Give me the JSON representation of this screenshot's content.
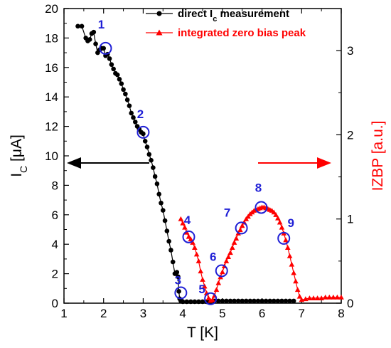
{
  "chart_data": {
    "type": "line",
    "x_axis": {
      "label": "T [K]",
      "range": [
        1,
        8
      ],
      "ticks": [
        "1",
        "2",
        "3",
        "4",
        "5",
        "6",
        "7",
        "8"
      ]
    },
    "y_axis_left": {
      "label_main": "I",
      "label_sub": "C",
      "label_unit": " [μA]",
      "range": [
        0,
        20
      ],
      "ticks": [
        "0",
        "2",
        "4",
        "6",
        "8",
        "10",
        "12",
        "14",
        "16",
        "18",
        "20"
      ]
    },
    "y_axis_right": {
      "label": "IZBP [a.u.]",
      "range": [
        0,
        3.5
      ],
      "ticks": [
        "0",
        "1",
        "2",
        "3"
      ],
      "color": "#ff0000"
    },
    "series": [
      {
        "name": "direct I_c measurement",
        "legend_main": "direct I",
        "legend_sub": "c",
        "legend_rest": " measurement",
        "color": "#000000",
        "marker": "circle",
        "axis": "left",
        "x": [
          1.35,
          1.45,
          1.55,
          1.6,
          1.65,
          1.7,
          1.75,
          1.8,
          1.85,
          1.9,
          1.95,
          2.0,
          2.05,
          2.1,
          2.15,
          2.2,
          2.25,
          2.3,
          2.35,
          2.4,
          2.45,
          2.5,
          2.55,
          2.6,
          2.65,
          2.7,
          2.75,
          2.8,
          2.85,
          2.9,
          2.95,
          3.0,
          3.05,
          3.1,
          3.15,
          3.2,
          3.25,
          3.3,
          3.35,
          3.4,
          3.45,
          3.5,
          3.55,
          3.6,
          3.65,
          3.7,
          3.75,
          3.8,
          3.85,
          3.88,
          3.9,
          3.92,
          3.95,
          4.0,
          4.1,
          4.2,
          4.3,
          4.4,
          4.5,
          4.6,
          4.7,
          4.8,
          4.9,
          5.0,
          5.1,
          5.2,
          5.3,
          5.4,
          5.5,
          5.6,
          5.7,
          5.8,
          5.9,
          6.0,
          6.1,
          6.2,
          6.3,
          6.4,
          6.5,
          6.6,
          6.7,
          6.8
        ],
        "y": [
          18.8,
          18.8,
          18.0,
          17.8,
          17.9,
          18.3,
          18.4,
          17.6,
          17.0,
          17.2,
          17.3,
          17.3,
          16.8,
          16.9,
          16.6,
          16.2,
          15.9,
          15.6,
          15.5,
          15.2,
          14.9,
          14.5,
          14.2,
          13.8,
          13.4,
          12.9,
          12.6,
          12.3,
          12.0,
          11.8,
          11.6,
          11.5,
          11.0,
          10.6,
          10.1,
          9.7,
          9.2,
          8.6,
          8.1,
          7.4,
          6.8,
          6.3,
          5.6,
          4.9,
          4.2,
          3.6,
          2.8,
          2.0,
          2.1,
          1.8,
          0.8,
          0.3,
          0.15,
          0.1,
          0.1,
          0.1,
          0.1,
          0.1,
          0.1,
          0.1,
          0.12,
          0.15,
          0.15,
          0.15,
          0.15,
          0.15,
          0.15,
          0.15,
          0.15,
          0.15,
          0.15,
          0.15,
          0.15,
          0.15,
          0.15,
          0.15,
          0.15,
          0.15,
          0.15,
          0.15,
          0.15,
          0.15
        ]
      },
      {
        "name": "integrated zero bias peak",
        "legend_text": "integrated zero bias peak",
        "color": "#ff0000",
        "marker": "triangle",
        "axis": "right",
        "x": [
          3.95,
          4.0,
          4.05,
          4.1,
          4.15,
          4.2,
          4.25,
          4.3,
          4.35,
          4.4,
          4.45,
          4.5,
          4.55,
          4.6,
          4.65,
          4.7,
          4.75,
          4.8,
          4.85,
          4.9,
          4.95,
          5.0,
          5.05,
          5.1,
          5.15,
          5.2,
          5.25,
          5.3,
          5.35,
          5.4,
          5.45,
          5.5,
          5.55,
          5.6,
          5.65,
          5.7,
          5.75,
          5.8,
          5.85,
          5.9,
          5.95,
          6.0,
          6.05,
          6.1,
          6.15,
          6.2,
          6.25,
          6.3,
          6.35,
          6.4,
          6.45,
          6.5,
          6.55,
          6.6,
          6.65,
          6.7,
          6.75,
          6.8,
          6.85,
          6.9,
          6.95,
          7.0,
          7.1,
          7.2,
          7.3,
          7.4,
          7.5,
          7.6,
          7.7,
          7.8,
          7.9,
          8.0
        ],
        "y": [
          1.0,
          0.95,
          0.9,
          0.84,
          0.79,
          0.76,
          0.72,
          0.66,
          0.58,
          0.5,
          0.38,
          0.28,
          0.2,
          0.12,
          0.06,
          0.03,
          0.04,
          0.09,
          0.16,
          0.24,
          0.31,
          0.37,
          0.44,
          0.5,
          0.55,
          0.6,
          0.66,
          0.72,
          0.77,
          0.83,
          0.87,
          0.92,
          0.96,
          1.0,
          1.03,
          1.06,
          1.08,
          1.1,
          1.11,
          1.12,
          1.13,
          1.14,
          1.14,
          1.13,
          1.12,
          1.11,
          1.1,
          1.08,
          1.05,
          1.01,
          0.96,
          0.9,
          0.83,
          0.75,
          0.66,
          0.56,
          0.46,
          0.36,
          0.26,
          0.16,
          0.08,
          0.04,
          0.05,
          0.06,
          0.06,
          0.06,
          0.06,
          0.07,
          0.07,
          0.07,
          0.07,
          0.07
        ]
      }
    ],
    "markers": {
      "color": "#1f1fd6",
      "points": [
        {
          "label": "1",
          "x": 2.05,
          "y": 17.3
        },
        {
          "label": "2",
          "x": 3.0,
          "y": 11.6
        },
        {
          "label": "3",
          "x": 3.95,
          "y": 0.7
        },
        {
          "label": "4",
          "x": 4.15,
          "y": 4.5
        },
        {
          "label": "5",
          "x": 4.7,
          "y": 0.3
        },
        {
          "label": "6",
          "x": 4.98,
          "y": 2.2
        },
        {
          "label": "7",
          "x": 5.48,
          "y": 5.1
        },
        {
          "label": "8",
          "x": 5.98,
          "y": 6.5
        },
        {
          "label": "9",
          "x": 6.55,
          "y": 4.4
        }
      ]
    },
    "arrows": {
      "left_color": "#000000",
      "right_color": "#ff0000"
    },
    "grid": false,
    "legend_position": "top-right"
  }
}
